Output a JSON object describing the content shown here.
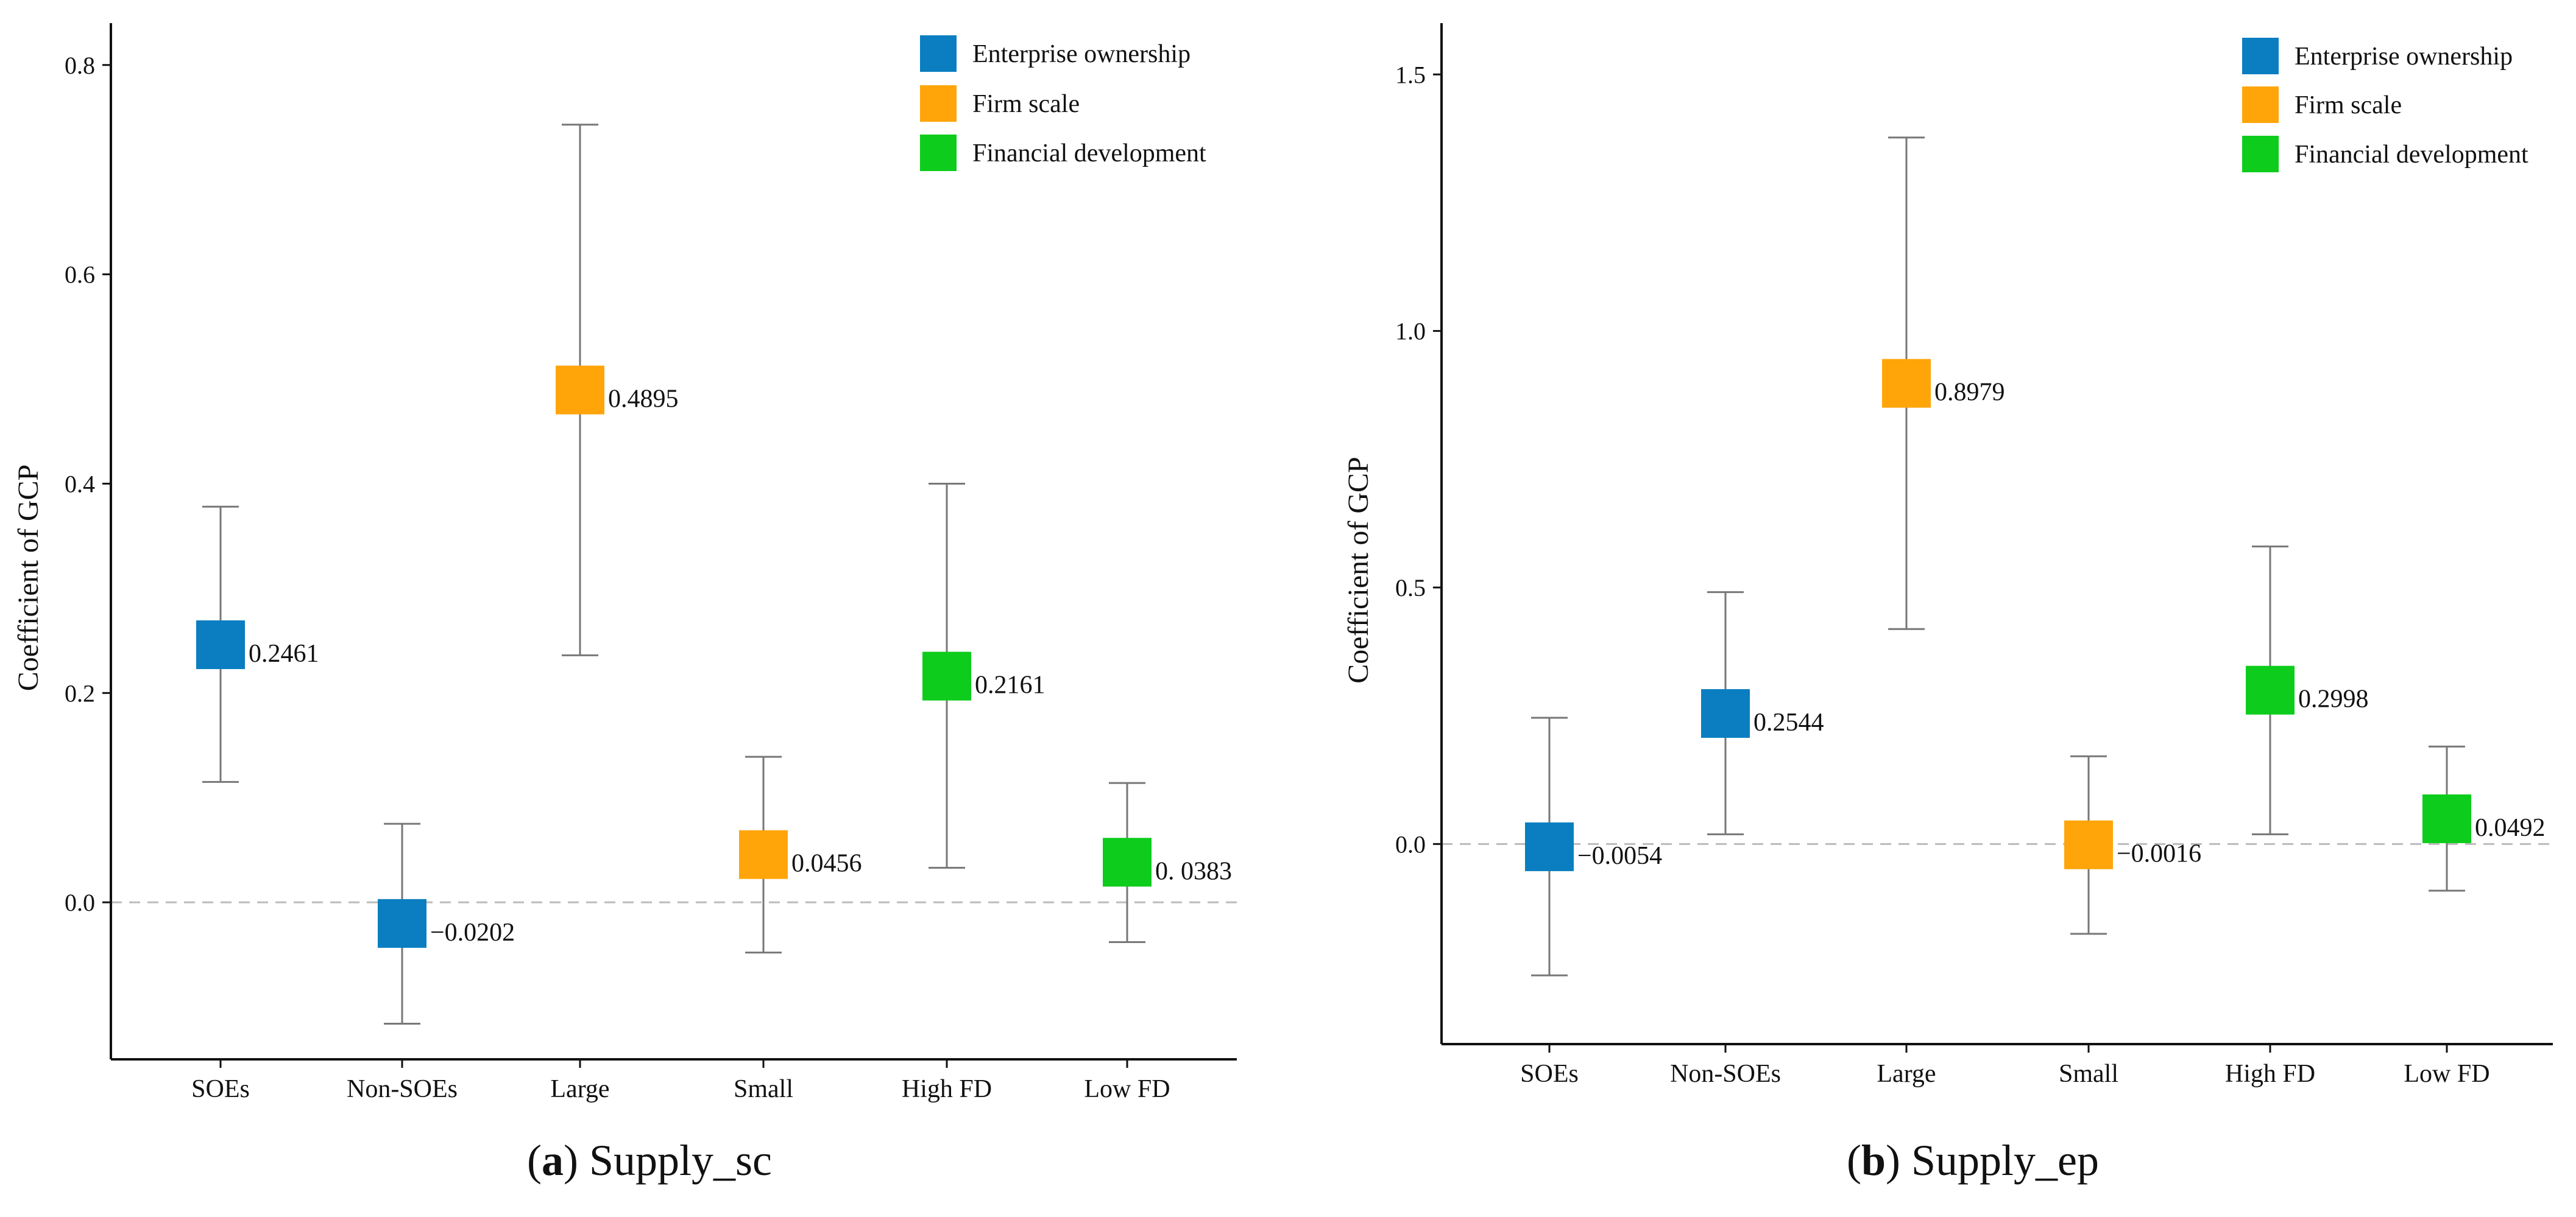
{
  "chart_data": [
    {
      "type": "scatter",
      "panel": "a",
      "caption_letter": "a",
      "caption_text": "Supply_sc",
      "ylabel": "Coefficient of GCP",
      "ylim": [
        -0.15,
        0.84
      ],
      "yticks": [
        0.0,
        0.2,
        0.4,
        0.6,
        0.8
      ],
      "ytick_labels": [
        "0.0",
        "0.2",
        "0.4",
        "0.6",
        "0.8"
      ],
      "reference_line": 0,
      "legend_position": "top-right",
      "categories": [
        "SOEs",
        "Non-SOEs",
        "Large",
        "Small",
        "High FD",
        "Low FD"
      ],
      "points": [
        {
          "category": "SOEs",
          "group": "Enterprise ownership",
          "value": 0.2461,
          "label": "0.2461",
          "ci_low": 0.115,
          "ci_high": 0.378
        },
        {
          "category": "Non-SOEs",
          "group": "Enterprise ownership",
          "value": -0.0202,
          "label": "−0.0202",
          "ci_low": -0.116,
          "ci_high": 0.075
        },
        {
          "category": "Large",
          "group": "Firm scale",
          "value": 0.4895,
          "label": "0.4895",
          "ci_low": 0.236,
          "ci_high": 0.743
        },
        {
          "category": "Small",
          "group": "Firm scale",
          "value": 0.0456,
          "label": "0.0456",
          "ci_low": -0.048,
          "ci_high": 0.139
        },
        {
          "category": "High FD",
          "group": "Financial development",
          "value": 0.2161,
          "label": "0.2161",
          "ci_low": 0.033,
          "ci_high": 0.4
        },
        {
          "category": "Low FD",
          "group": "Financial development",
          "value": 0.0383,
          "label": "0. 0383",
          "ci_low": -0.038,
          "ci_high": 0.114
        }
      ]
    },
    {
      "type": "scatter",
      "panel": "b",
      "caption_letter": "b",
      "caption_text": "Supply_ep",
      "ylabel": "Coefficient of GCP",
      "ylim": [
        -0.39,
        1.6
      ],
      "yticks": [
        0.0,
        0.5,
        1.0,
        1.5
      ],
      "ytick_labels": [
        "0.0",
        "0.5",
        "1.0",
        "1.5"
      ],
      "reference_line": 0,
      "legend_position": "top-right",
      "categories": [
        "SOEs",
        "Non-SOEs",
        "Large",
        "Small",
        "High FD",
        "Low FD"
      ],
      "points": [
        {
          "category": "SOEs",
          "group": "Enterprise ownership",
          "value": -0.0054,
          "label": "−0.0054",
          "ci_low": -0.256,
          "ci_high": 0.246
        },
        {
          "category": "Non-SOEs",
          "group": "Enterprise ownership",
          "value": 0.2544,
          "label": "0.2544",
          "ci_low": 0.019,
          "ci_high": 0.491
        },
        {
          "category": "Large",
          "group": "Firm scale",
          "value": 0.8979,
          "label": "0.8979",
          "ci_low": 0.419,
          "ci_high": 1.377
        },
        {
          "category": "Small",
          "group": "Firm scale",
          "value": -0.0016,
          "label": "−0.0016",
          "ci_low": -0.175,
          "ci_high": 0.171
        },
        {
          "category": "High FD",
          "group": "Financial development",
          "value": 0.2998,
          "label": "0.2998",
          "ci_low": 0.019,
          "ci_high": 0.58
        },
        {
          "category": "Low FD",
          "group": "Financial development",
          "value": 0.0492,
          "label": "0.0492",
          "ci_low": -0.091,
          "ci_high": 0.19
        }
      ]
    }
  ],
  "legend": [
    {
      "name": "Enterprise ownership",
      "color": "#0a7ec1"
    },
    {
      "name": "Firm scale",
      "color": "#ffa50a"
    },
    {
      "name": "Financial development",
      "color": "#0dcc1c"
    }
  ]
}
